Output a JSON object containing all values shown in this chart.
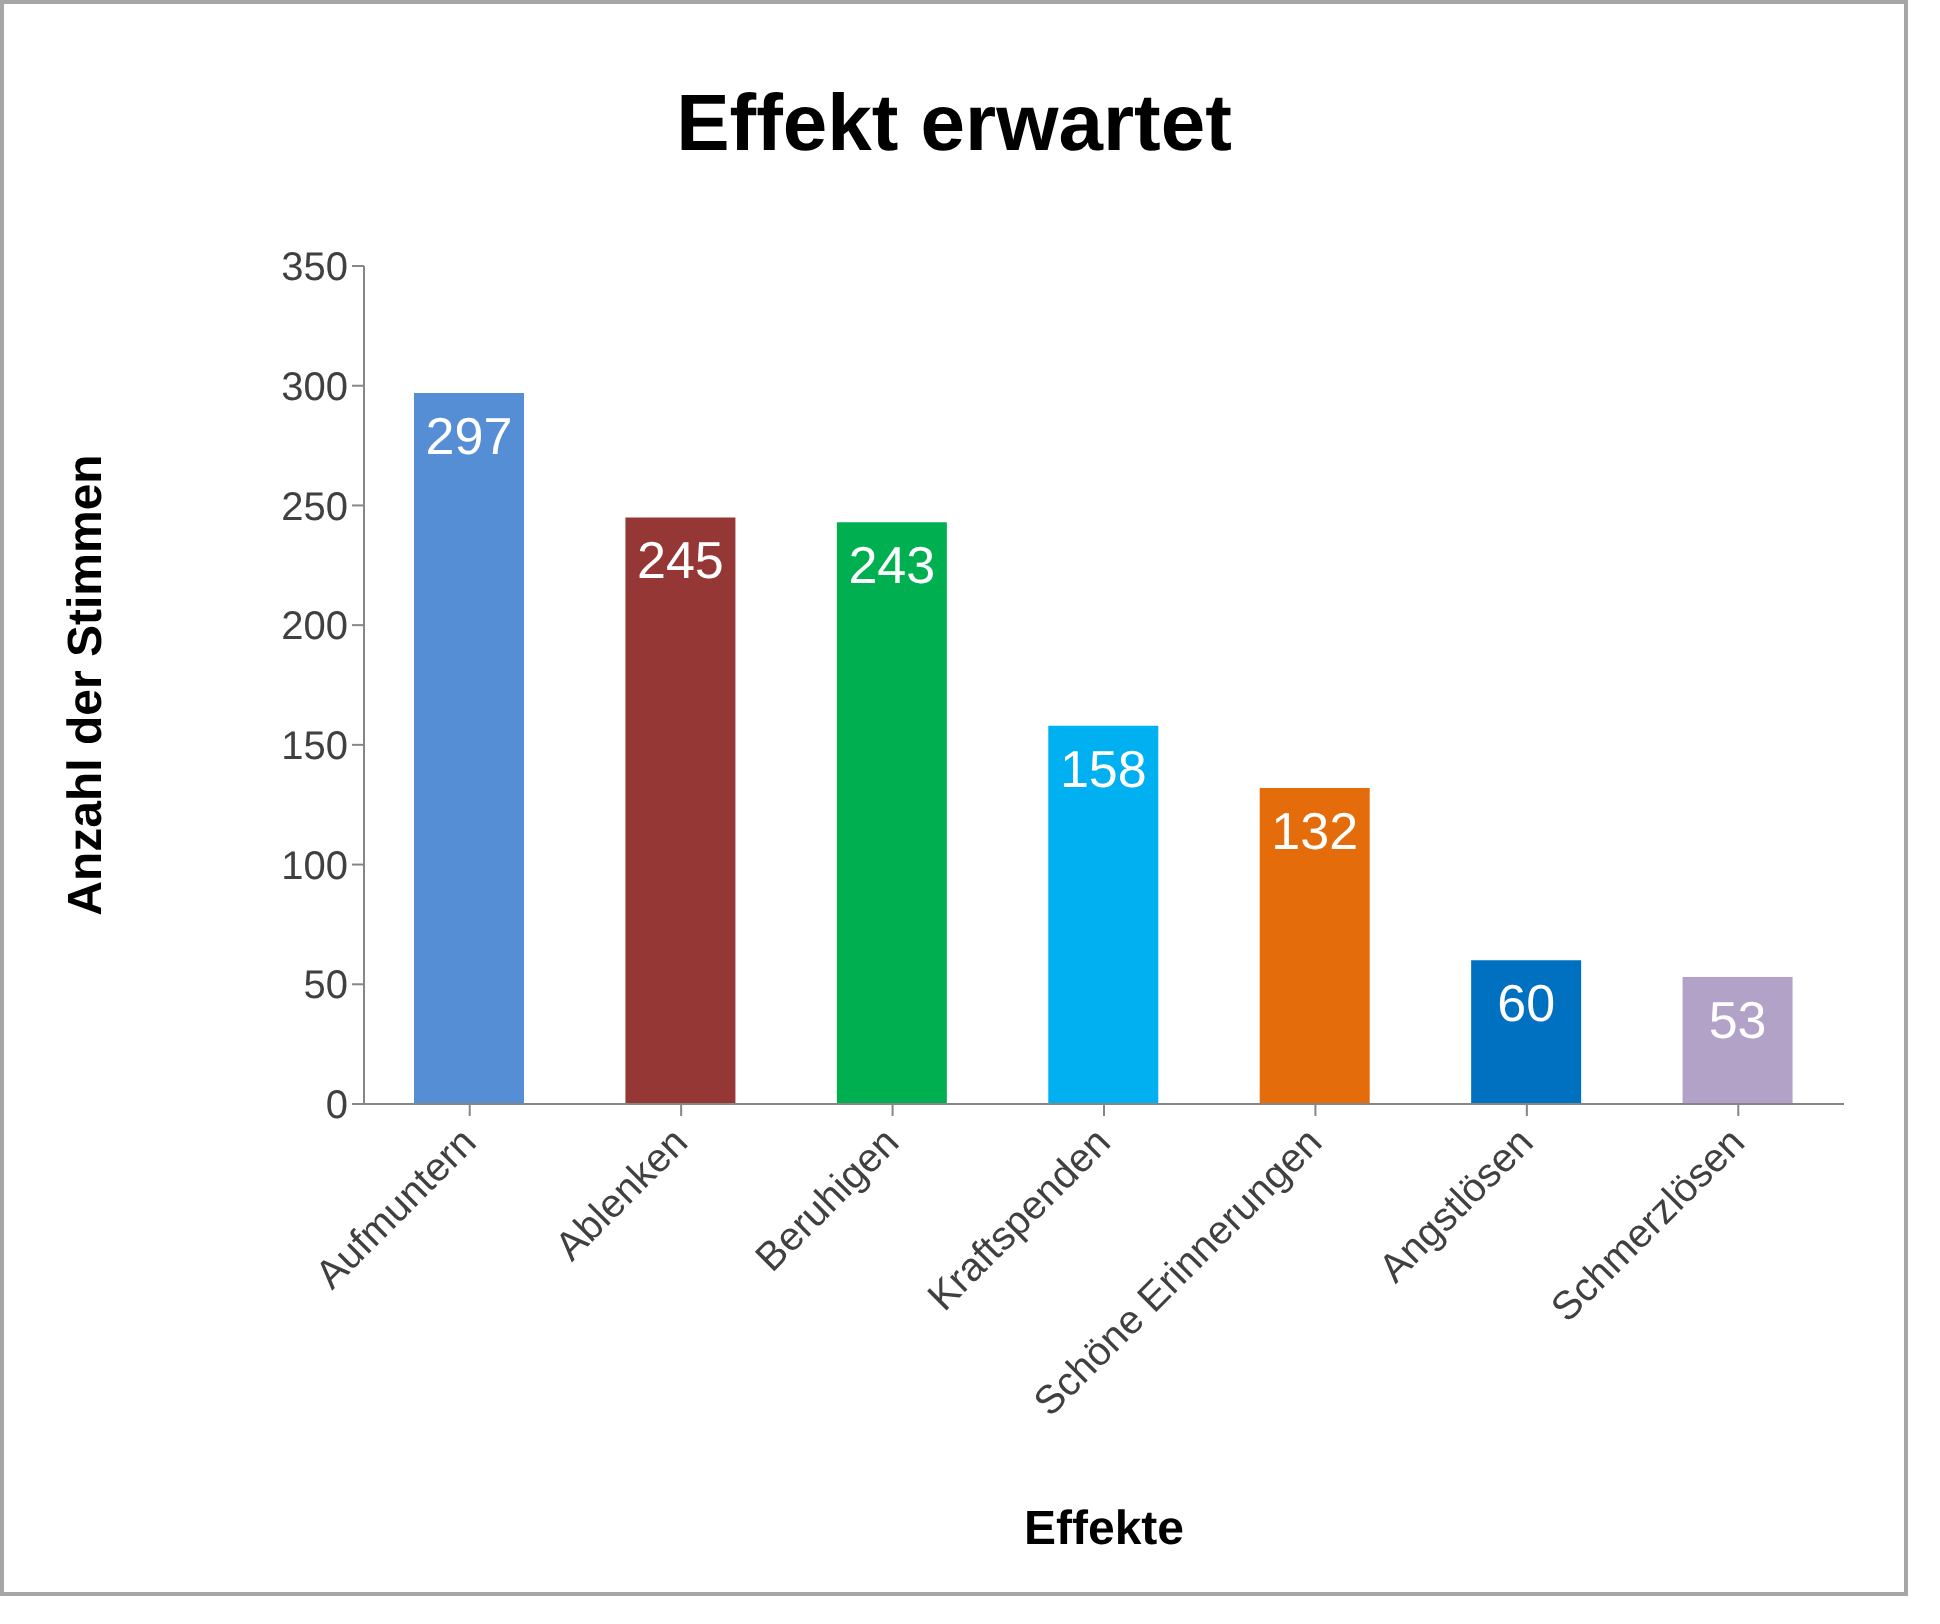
{
  "chart_data": {
    "type": "bar",
    "title": "Effekt erwartet",
    "xlabel": "Effekte",
    "ylabel": "Anzahl der Stimmen",
    "categories": [
      "Aufmuntern",
      "Ablenken",
      "Beruhigen",
      "Kraftspenden",
      "Schöne Erinnerungen",
      "Angstlösen",
      "Schmerzlösen"
    ],
    "values": [
      297,
      245,
      243,
      158,
      132,
      60,
      53
    ],
    "colors": [
      "#558ed5",
      "#953735",
      "#00b050",
      "#00b0f0",
      "#e46c0a",
      "#0070c0",
      "#b3a2c7"
    ],
    "ylim": [
      0,
      350
    ],
    "yticks": [
      0,
      50,
      100,
      150,
      200,
      250,
      300,
      350
    ],
    "grid": false,
    "legend": false,
    "data_labels": true
  }
}
